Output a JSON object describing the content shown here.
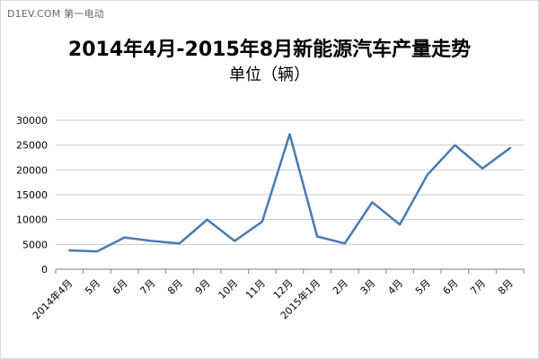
{
  "watermark": "D1EV.COM 第一电动",
  "chart_data": {
    "type": "line",
    "title": "2014年4月-2015年8月新能源汽车产量走势",
    "subtitle": "单位（辆）",
    "categories": [
      "2014年4月",
      "5月",
      "6月",
      "7月",
      "8月",
      "9月",
      "10月",
      "11月",
      "12月",
      "2015年1月",
      "2月",
      "3月",
      "4月",
      "5月",
      "6月",
      "7月",
      "8月"
    ],
    "series": [
      {
        "values": [
          3800,
          3600,
          6400,
          5700,
          5200,
          10000,
          5700,
          9600,
          27200,
          6600,
          5200,
          13500,
          9000,
          19000,
          25000,
          20300,
          24400
        ]
      }
    ],
    "ylim": [
      0,
      30000
    ],
    "yticks": [
      0,
      5000,
      10000,
      15000,
      20000,
      25000,
      30000
    ],
    "grid": true,
    "legend": "none",
    "colors": {
      "line": "#4a7ab0",
      "grid": "#c8c8c8",
      "axis": "#7f7f7f"
    }
  }
}
